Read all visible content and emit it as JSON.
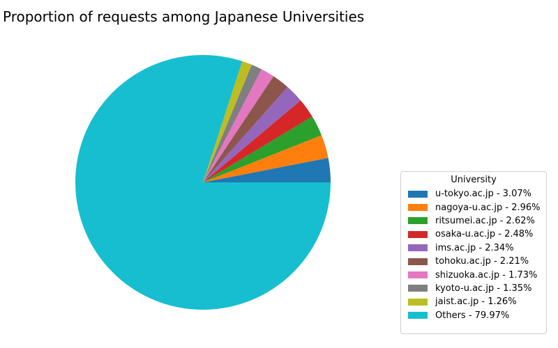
{
  "chart_data": {
    "type": "pie",
    "title": "Proportion of requests among Japanese Universities",
    "legend_title": "University",
    "legend_position": "lower-right",
    "start_angle_deg": 0,
    "direction": "counterclockwise",
    "slices": [
      {
        "label": "u-tokyo.ac.jp - 3.07%",
        "value": 3.07,
        "color": "#1f77b4"
      },
      {
        "label": "nagoya-u.ac.jp - 2.96%",
        "value": 2.96,
        "color": "#ff7f0e"
      },
      {
        "label": "ritsumei.ac.jp - 2.62%",
        "value": 2.62,
        "color": "#2ca02c"
      },
      {
        "label": "osaka-u.ac.jp - 2.48%",
        "value": 2.48,
        "color": "#d62728"
      },
      {
        "label": "ims.ac.jp - 2.34%",
        "value": 2.34,
        "color": "#9467bd"
      },
      {
        "label": "tohoku.ac.jp - 2.21%",
        "value": 2.21,
        "color": "#8c564b"
      },
      {
        "label": "shizuoka.ac.jp - 1.73%",
        "value": 1.73,
        "color": "#e377c2"
      },
      {
        "label": "kyoto-u.ac.jp - 1.35%",
        "value": 1.35,
        "color": "#7f7f7f"
      },
      {
        "label": "jaist.ac.jp - 1.26%",
        "value": 1.26,
        "color": "#bcbd22"
      },
      {
        "label": "Others - 79.97%",
        "value": 79.97,
        "color": "#17becf"
      }
    ]
  }
}
